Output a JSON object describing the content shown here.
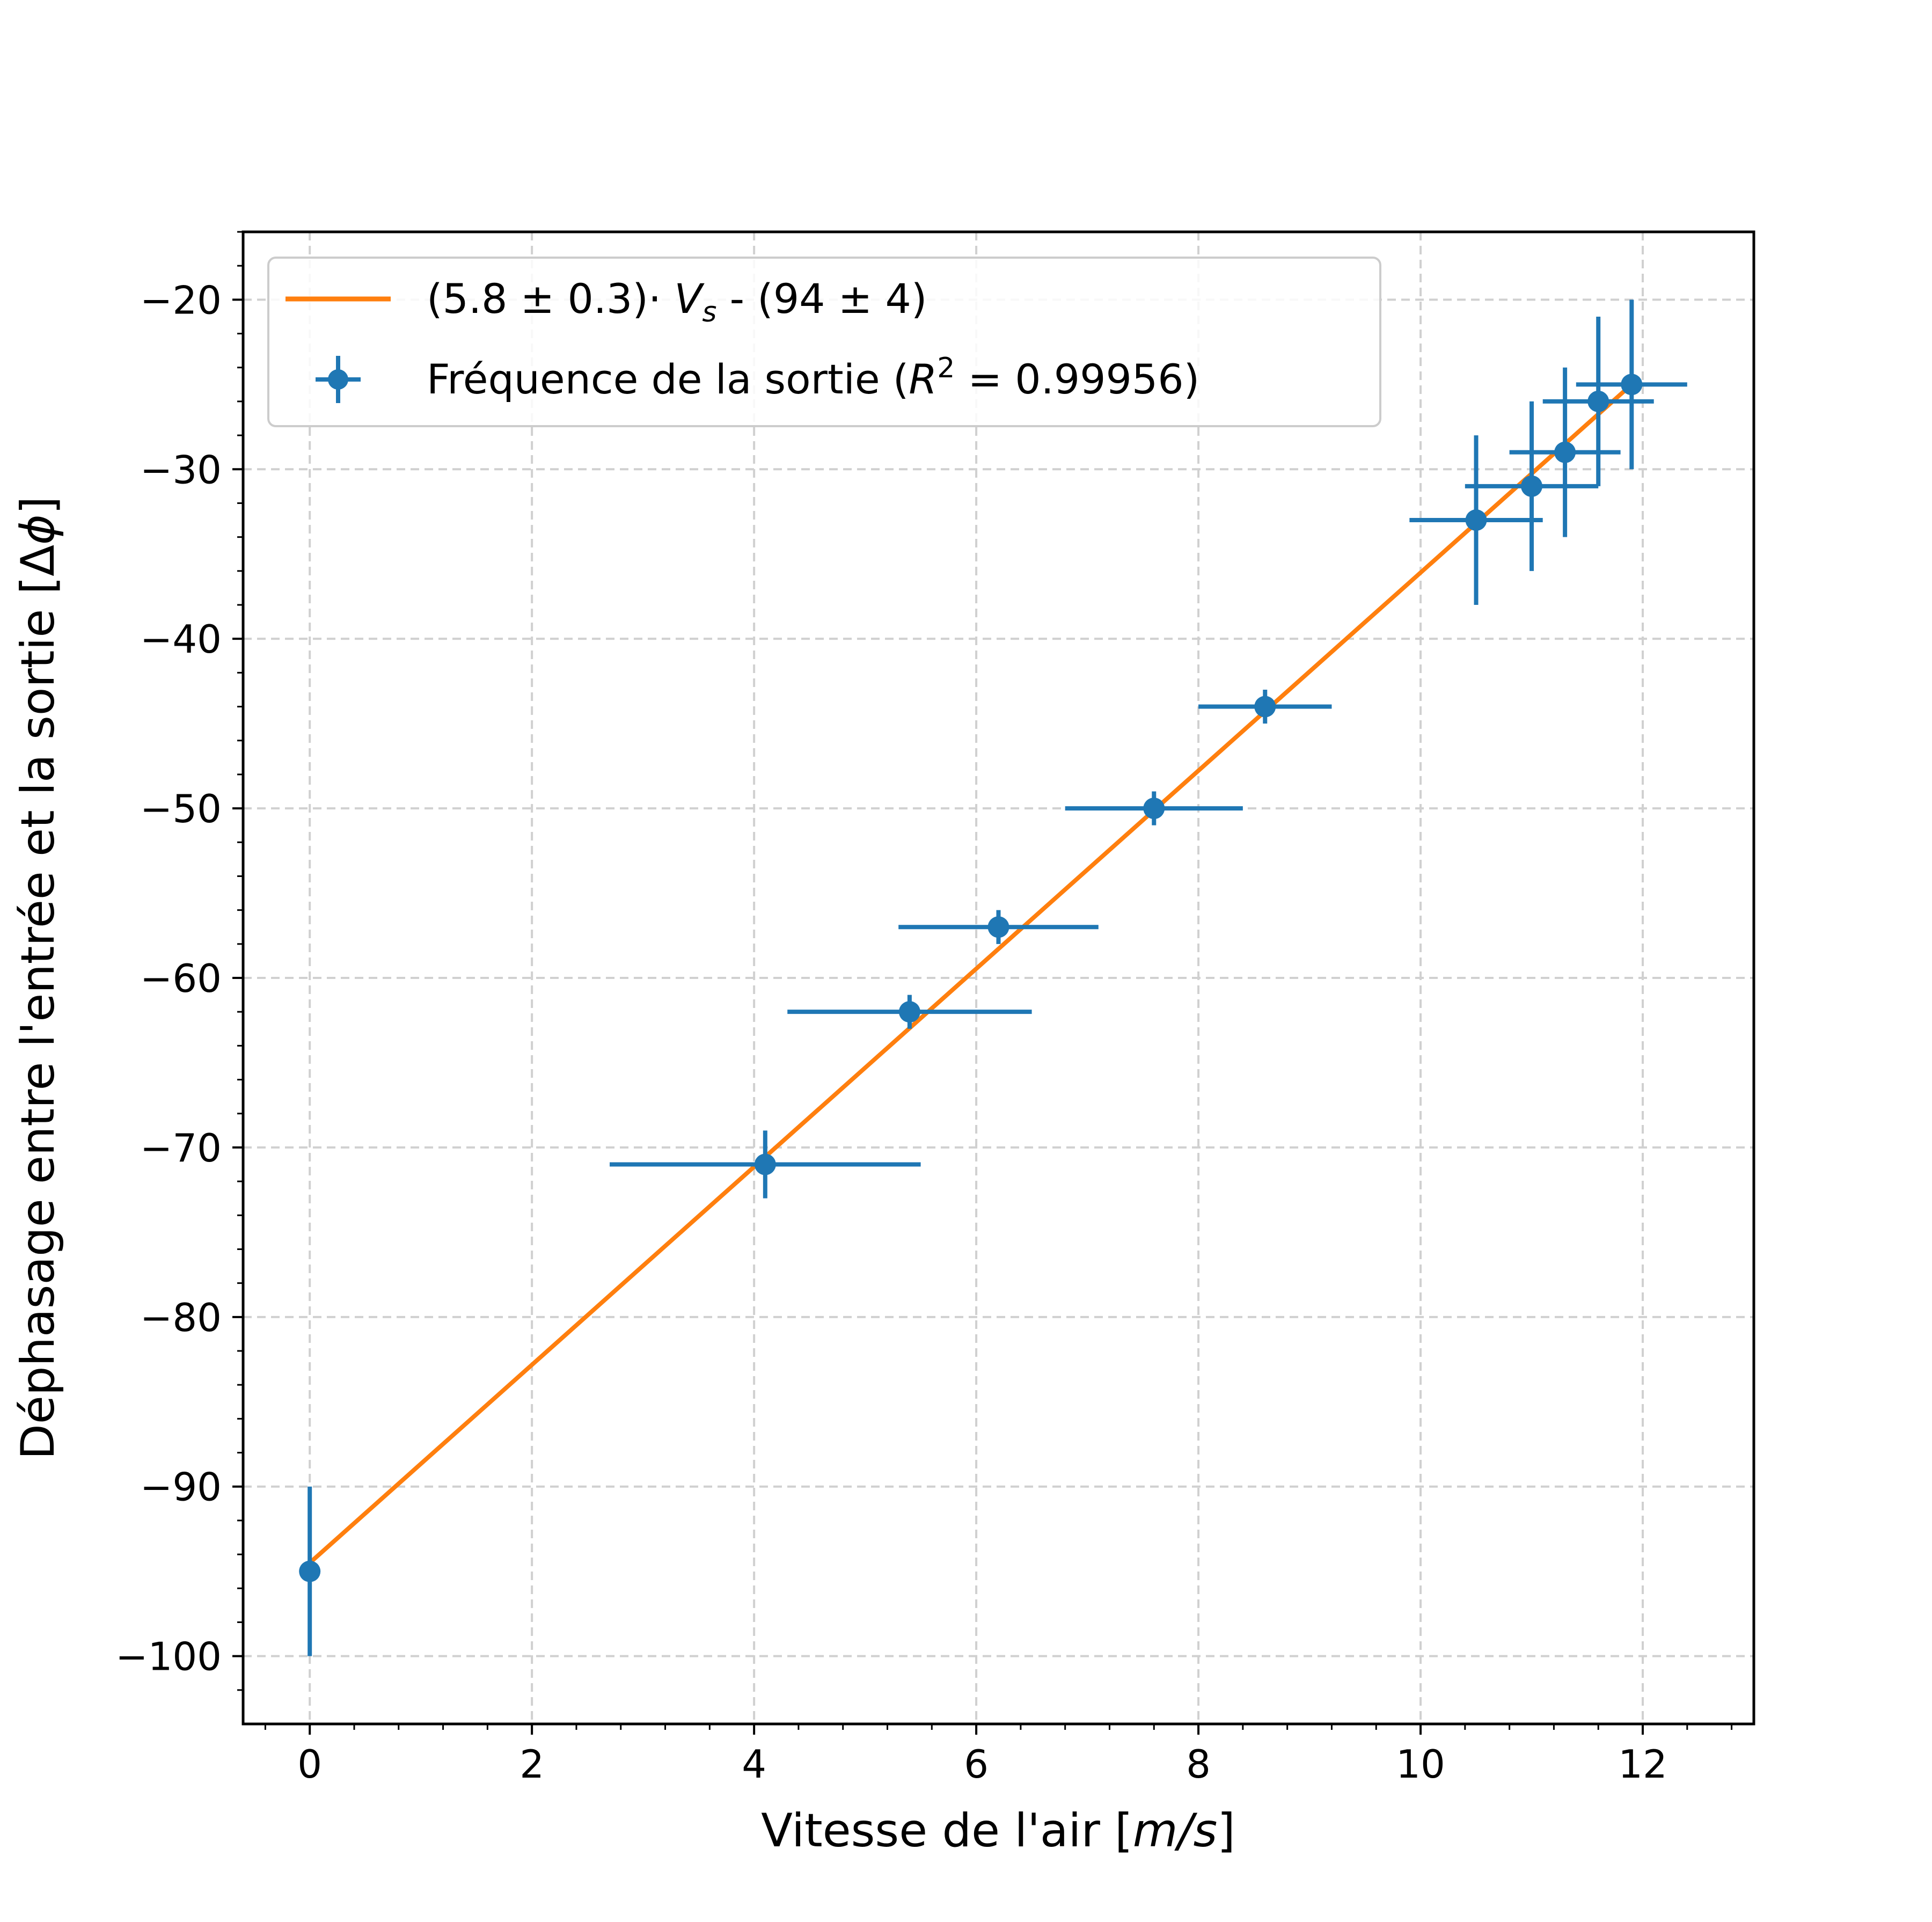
{
  "chart_data": {
    "type": "scatter",
    "xlabel": "Vitesse de l'air [m/s]",
    "ylabel": "Déphasage entre l'entrée et la sortie [Δϕ]",
    "xlim": [
      -0.6,
      13.0
    ],
    "ylim": [
      -104,
      -16
    ],
    "xticks": [
      0,
      2,
      4,
      6,
      8,
      10,
      12
    ],
    "yticks": [
      -100,
      -90,
      -80,
      -70,
      -60,
      -50,
      -40,
      -30,
      -20
    ],
    "xtick_labels": [
      "0",
      "2",
      "4",
      "6",
      "8",
      "10",
      "12"
    ],
    "ytick_labels": [
      "−100",
      "−90",
      "−80",
      "−70",
      "−60",
      "−50",
      "−40",
      "−30",
      "−20"
    ],
    "grid": true,
    "legend_position": "top-left",
    "series": [
      {
        "name": "Fréquence de la sortie (R² = 0.99956)",
        "kind": "errorbar",
        "color": "#1f77b4",
        "points": [
          {
            "x": 0.0,
            "y": -95,
            "xerr": 0.0,
            "yerr": 5
          },
          {
            "x": 4.1,
            "y": -71,
            "xerr": 1.4,
            "yerr": 2
          },
          {
            "x": 5.4,
            "y": -62,
            "xerr": 1.1,
            "yerr": 1
          },
          {
            "x": 6.2,
            "y": -57,
            "xerr": 0.9,
            "yerr": 1
          },
          {
            "x": 7.6,
            "y": -50,
            "xerr": 0.8,
            "yerr": 1
          },
          {
            "x": 8.6,
            "y": -44,
            "xerr": 0.6,
            "yerr": 1
          },
          {
            "x": 10.5,
            "y": -33,
            "xerr": 0.6,
            "yerr": 5
          },
          {
            "x": 11.0,
            "y": -31,
            "xerr": 0.6,
            "yerr": 5
          },
          {
            "x": 11.3,
            "y": -29,
            "xerr": 0.5,
            "yerr": 5
          },
          {
            "x": 11.6,
            "y": -26,
            "xerr": 0.5,
            "yerr": 5
          },
          {
            "x": 11.9,
            "y": -25,
            "xerr": 0.5,
            "yerr": 5
          }
        ]
      },
      {
        "name": "(5.8 ± 0.3)· V_s - (94 ± 4)",
        "kind": "line",
        "color": "#ff7f0e",
        "x": [
          0.0,
          11.9
        ],
        "y": [
          -94.5,
          -25.0
        ]
      }
    ]
  },
  "legend": {
    "fit_label": "(5.8 ± 0.3)· ",
    "fit_var": "V",
    "fit_sub": "s",
    "fit_rest": " - (94 ± 4)",
    "data_label_pre": "Fréquence de la sortie (",
    "data_label_R": "R",
    "data_label_sup": "2",
    "data_label_post": " = 0.99956)"
  },
  "axes": {
    "xlabel_pre": "Vitesse de l'air [",
    "xlabel_unit": "m/s",
    "xlabel_post": "]",
    "ylabel_pre": "Déphasage entre l'entrée et la sortie [Δ",
    "ylabel_sym": "ϕ",
    "ylabel_post": "]"
  }
}
